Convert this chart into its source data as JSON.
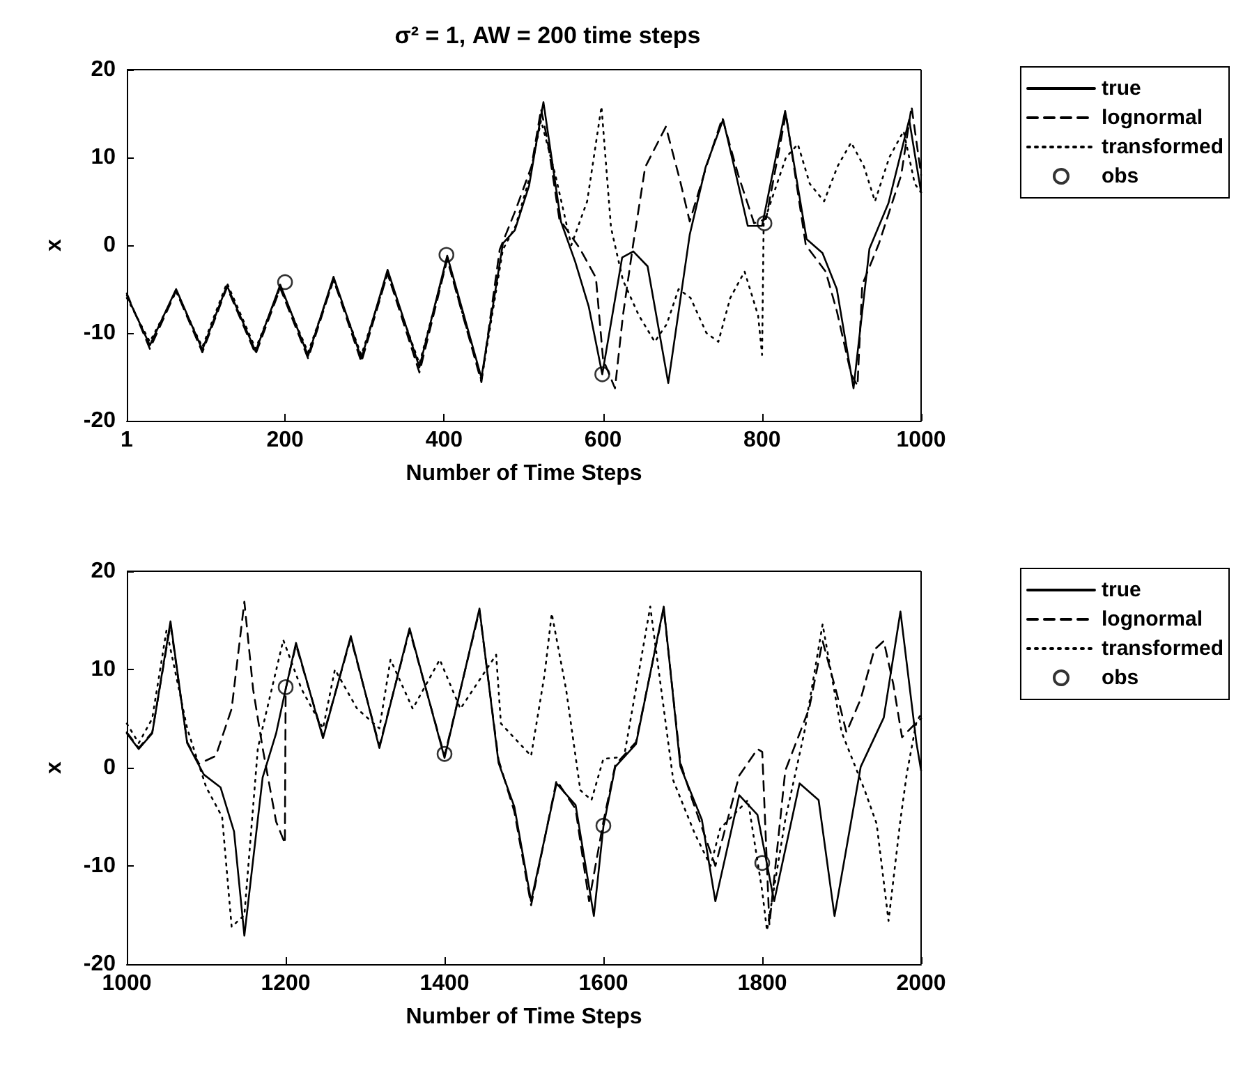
{
  "chart_data": [
    {
      "type": "line",
      "title": "σ² = 1, AW = 200 time steps",
      "xlabel": "Number of Time Steps",
      "ylabel": "x",
      "xlim": [
        1,
        1000
      ],
      "xticks": [
        1,
        200,
        400,
        600,
        800,
        1000
      ],
      "ylim": [
        -20,
        20
      ],
      "yticks": [
        -20,
        -10,
        0,
        10,
        20
      ],
      "grid": false,
      "legend": "right",
      "series": [
        {
          "name": "true",
          "color": "#000000",
          "line_style": "solid",
          "x": [
            1,
            30,
            63,
            96,
            127,
            163,
            194,
            229,
            261,
            296,
            329,
            369,
            404,
            447,
            474,
            489,
            507,
            522,
            525,
            547,
            565,
            582,
            599,
            624,
            638,
            656,
            682,
            709,
            729,
            751,
            765,
            782,
            800,
            829,
            856,
            876,
            894,
            915,
            935,
            959,
            985,
            1000
          ],
          "values": [
            -5.7,
            -11.4,
            -5.0,
            -11.9,
            -4.6,
            -12.1,
            -4.5,
            -12.6,
            -3.6,
            -12.9,
            -2.8,
            -13.9,
            -1.2,
            -15.1,
            0.2,
            1.7,
            6.8,
            14.8,
            16.3,
            2.7,
            -1.9,
            -7.0,
            -14.7,
            -1.4,
            -0.7,
            -2.4,
            -15.7,
            1.2,
            8.9,
            14.3,
            8.9,
            2.2,
            2.2,
            15.3,
            0.7,
            -0.9,
            -5.0,
            -16.3,
            -0.4,
            4.8,
            14.3,
            6
          ]
        },
        {
          "name": "lognormal",
          "color": "#000000",
          "line_style": "dashed",
          "x": [
            1,
            30,
            63,
            96,
            127,
            163,
            194,
            229,
            261,
            296,
            329,
            369,
            404,
            447,
            470,
            490,
            510,
            522,
            530,
            545,
            571,
            591,
            600,
            615,
            625,
            638,
            653,
            679,
            697,
            709,
            730,
            750,
            770,
            790,
            805,
            830,
            855,
            880,
            894,
            912,
            920,
            926,
            947,
            975,
            988,
            1000
          ],
          "values": [
            -5.5,
            -11.8,
            -5.2,
            -12.2,
            -4.8,
            -12.4,
            -4.9,
            -12.9,
            -3.9,
            -13.3,
            -3.2,
            -14.5,
            -1.6,
            -15.6,
            -0.5,
            4,
            9,
            15.5,
            12,
            3,
            -0.4,
            -3.7,
            -13,
            -16.3,
            -8,
            0.2,
            8.9,
            13.5,
            7.3,
            2.7,
            9,
            14.5,
            8,
            2.5,
            3,
            15,
            0,
            -3,
            -7.5,
            -14.7,
            -16,
            -4.5,
            0.2,
            8,
            15.8,
            8
          ]
        },
        {
          "name": "transformed",
          "color": "#000000",
          "line_style": "dotted",
          "x": [
            1,
            30,
            63,
            96,
            127,
            163,
            194,
            229,
            261,
            296,
            329,
            369,
            404,
            447,
            474,
            490,
            507,
            522,
            540,
            560,
            580,
            598,
            610,
            625,
            645,
            665,
            680,
            695,
            710,
            730,
            745,
            760,
            778,
            795,
            800,
            802,
            815,
            830,
            845,
            860,
            878,
            895,
            912,
            928,
            942,
            960,
            978,
            992,
            1000
          ],
          "values": [
            -6,
            -11,
            -5.3,
            -11.6,
            -4.3,
            -11.8,
            -4.8,
            -12.2,
            -4.0,
            -12.5,
            -3.3,
            -13.5,
            -1.6,
            -15.4,
            -0.5,
            2.2,
            7.5,
            14.2,
            8,
            0,
            5,
            15.8,
            2,
            -4,
            -8,
            -11,
            -9,
            -5,
            -6,
            -10,
            -11,
            -6,
            -3,
            -8,
            -12.5,
            2.5,
            6,
            10,
            11.5,
            7,
            5,
            9,
            11.7,
            9,
            5,
            10,
            13,
            7,
            6
          ]
        },
        {
          "name": "obs",
          "type": "scatter",
          "marker": "circle",
          "color": "#000000",
          "x": [
            200,
            403,
            599,
            803
          ],
          "values": [
            -4.2,
            -1.1,
            -14.7,
            2.5
          ]
        }
      ]
    },
    {
      "type": "line",
      "xlabel": "Number of Time Steps",
      "ylabel": "x",
      "xlim": [
        1000,
        2000
      ],
      "xticks": [
        1000,
        1200,
        1400,
        1600,
        1800,
        2000
      ],
      "ylim": [
        -20,
        20
      ],
      "yticks": [
        -20,
        -10,
        0,
        10,
        20
      ],
      "grid": false,
      "legend": "right",
      "series": [
        {
          "name": "true",
          "color": "#000000",
          "line_style": "solid",
          "x": [
            1000,
            1015,
            1032,
            1055,
            1076,
            1097,
            1118,
            1135,
            1148,
            1171,
            1188,
            1200,
            1213,
            1247,
            1282,
            1318,
            1356,
            1400,
            1444,
            1468,
            1488,
            1509,
            1541,
            1565,
            1588,
            1600,
            1615,
            1641,
            1676,
            1697,
            1724,
            1741,
            1771,
            1794,
            1815,
            1847,
            1871,
            1891,
            1924,
            1953,
            1974,
            1994,
            2000
          ],
          "values": [
            3.5,
            1.9,
            3.5,
            14.9,
            2.5,
            -0.7,
            -2.0,
            -6.5,
            -17.1,
            -1.0,
            3.5,
            8.0,
            12.7,
            3.0,
            13.4,
            2.0,
            14.2,
            1.0,
            16.2,
            0.5,
            -4.0,
            -13.6,
            -1.6,
            -3.8,
            -15.1,
            -6.0,
            0.1,
            2.4,
            16.4,
            0.1,
            -5.3,
            -13.6,
            -2.8,
            -4.8,
            -13.6,
            -1.6,
            -3.3,
            -15.1,
            0.1,
            5.1,
            15.9,
            2.6,
            -0.3
          ]
        },
        {
          "name": "lognormal",
          "color": "#000000",
          "line_style": "dashed",
          "x": [
            1000,
            1015,
            1032,
            1055,
            1076,
            1091,
            1112,
            1132,
            1148,
            1159,
            1171,
            1188,
            1199,
            1200,
            1213,
            1247,
            1282,
            1318,
            1356,
            1400,
            1444,
            1468,
            1488,
            1509,
            1541,
            1565,
            1582,
            1600,
            1615,
            1641,
            1676,
            1697,
            1712,
            1741,
            1771,
            1794,
            1800,
            1809,
            1829,
            1859,
            1876,
            1894,
            1906,
            1924,
            1941,
            1953,
            1965,
            1976,
            1994,
            2000
          ],
          "values": [
            3.6,
            2.0,
            3.6,
            14.6,
            2.6,
            0.4,
            1.2,
            6,
            16.9,
            8,
            2,
            -5.5,
            -7.7,
            8,
            12.5,
            3.2,
            13.2,
            2.2,
            14.0,
            1.2,
            16.0,
            0.8,
            -4.5,
            -14,
            -1.3,
            -4.2,
            -13.6,
            -5.5,
            0.3,
            2.6,
            16.2,
            0.5,
            -3.3,
            -10,
            -0.8,
            1.9,
            1.6,
            -16,
            -0.3,
            6,
            12.9,
            7.5,
            3.6,
            7,
            12,
            12.9,
            8.5,
            3.1,
            4.6,
            5
          ]
        },
        {
          "name": "transformed",
          "color": "#000000",
          "line_style": "dotted",
          "x": [
            1000,
            1015,
            1032,
            1050,
            1076,
            1100,
            1120,
            1132,
            1148,
            1165,
            1197,
            1220,
            1247,
            1262,
            1290,
            1318,
            1332,
            1360,
            1394,
            1420,
            1465,
            1471,
            1509,
            1526,
            1535,
            1553,
            1571,
            1585,
            1600,
            1626,
            1659,
            1688,
            1715,
            1735,
            1747,
            1782,
            1800,
            1806,
            1829,
            1853,
            1876,
            1900,
            1929,
            1944,
            1959,
            1974,
            1982,
            1994,
            2000
          ],
          "values": [
            4.5,
            2.5,
            5,
            14,
            4,
            -2,
            -5,
            -16.2,
            -15,
            2,
            13,
            8,
            4,
            10,
            6,
            4,
            11,
            6,
            11,
            6,
            11.5,
            4.5,
            1.2,
            9.5,
            15.7,
            8,
            -2.3,
            -3.3,
            0.9,
            1.1,
            16.4,
            -1.3,
            -6.7,
            -10,
            -6.2,
            -3.3,
            -12.6,
            -16.6,
            -5.3,
            3.6,
            14.6,
            3.6,
            -2.3,
            -5.7,
            -15.6,
            -5.3,
            -0.6,
            4.6,
            5.5
          ]
        },
        {
          "name": "obs",
          "type": "scatter",
          "marker": "circle",
          "color": "#000000",
          "x": [
            1200,
            1400,
            1600,
            1800
          ],
          "values": [
            8.2,
            1.4,
            -5.9,
            -9.7
          ]
        }
      ]
    }
  ]
}
